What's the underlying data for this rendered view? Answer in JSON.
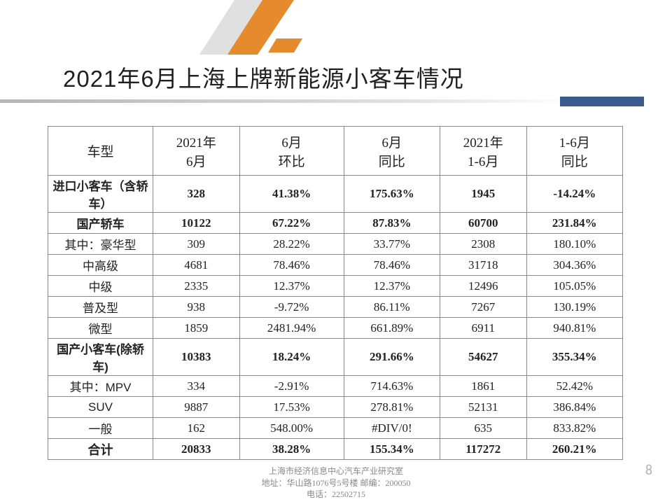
{
  "title": "2021年6月上海上牌新能源小客车情况",
  "page_number": "8",
  "footer": {
    "line1": "上海市经济信息中心汽车产业研究室",
    "line2": "地址：华山路1076号5号楼  邮编：200050",
    "line3": "电话：22502715"
  },
  "decor_colors": {
    "orange": "#e58b2d",
    "grey": "#b5b5b5",
    "blue": "#3b5b8c"
  },
  "table": {
    "columns": [
      "车型",
      "2021年\n6月",
      "6月\n环比",
      "6月\n同比",
      "2021年\n1-6月",
      "1-6月\n同比"
    ],
    "rows": [
      {
        "label": "进口小客车（含轿车）",
        "cells": [
          "328",
          "41.38%",
          "175.63%",
          "1945",
          "-14.24%"
        ],
        "bold": true,
        "sub": false
      },
      {
        "label": "国产轿车",
        "cells": [
          "10122",
          "67.22%",
          "87.83%",
          "60700",
          "231.84%"
        ],
        "bold": true,
        "sub": false
      },
      {
        "label": "其中：豪华型",
        "cells": [
          "309",
          "28.22%",
          "33.77%",
          "2308",
          "180.10%"
        ],
        "bold": false,
        "sub": true
      },
      {
        "label": "中高级",
        "cells": [
          "4681",
          "78.46%",
          "78.46%",
          "31718",
          "304.36%"
        ],
        "bold": false,
        "sub": true
      },
      {
        "label": "中级",
        "cells": [
          "2335",
          "12.37%",
          "12.37%",
          "12496",
          "105.05%"
        ],
        "bold": false,
        "sub": true
      },
      {
        "label": "普及型",
        "cells": [
          "938",
          "-9.72%",
          "86.11%",
          "7267",
          "130.19%"
        ],
        "bold": false,
        "sub": true
      },
      {
        "label": "微型",
        "cells": [
          "1859",
          "2481.94%",
          "661.89%",
          "6911",
          "940.81%"
        ],
        "bold": false,
        "sub": true
      },
      {
        "label": "国产小客车(除轿车)",
        "cells": [
          "10383",
          "18.24%",
          "291.66%",
          "54627",
          "355.34%"
        ],
        "bold": true,
        "sub": false
      },
      {
        "label": "其中：MPV",
        "cells": [
          "334",
          "-2.91%",
          "714.63%",
          "1861",
          "52.42%"
        ],
        "bold": false,
        "sub": true
      },
      {
        "label": "SUV",
        "cells": [
          "9887",
          "17.53%",
          "278.81%",
          "52131",
          "386.84%"
        ],
        "bold": false,
        "sub": true
      },
      {
        "label": "一般",
        "cells": [
          "162",
          "548.00%",
          "#DIV/0!",
          "635",
          "833.82%"
        ],
        "bold": false,
        "sub": true
      },
      {
        "label": "合计",
        "cells": [
          "20833",
          "38.28%",
          "155.34%",
          "117272",
          "260.21%"
        ],
        "bold": true,
        "sub": false,
        "total": true
      }
    ]
  }
}
